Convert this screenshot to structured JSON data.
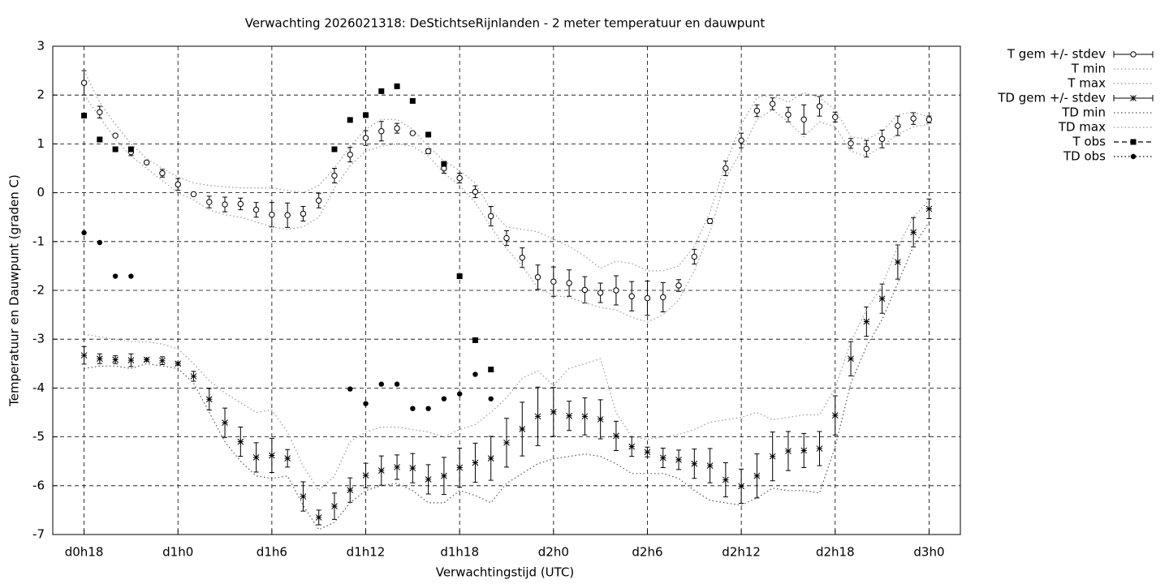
{
  "chart_data": {
    "type": "errorbar",
    "title": "Verwachting 2026021318: DeStichtseRijnlanden - 2 meter temperatuur en dauwpunt",
    "xlabel": "Verwachtingstijd (UTC)",
    "ylabel": "Temperatuur en Dauwpunt (graden C)",
    "xlim": [
      16,
      74
    ],
    "ylim": [
      -7,
      3
    ],
    "xticks": [
      {
        "value": 18,
        "label": "d0h18"
      },
      {
        "value": 24,
        "label": "d1h0"
      },
      {
        "value": 30,
        "label": "d1h6"
      },
      {
        "value": 36,
        "label": "d1h12"
      },
      {
        "value": 42,
        "label": "d1h18"
      },
      {
        "value": 48,
        "label": "d2h0"
      },
      {
        "value": 54,
        "label": "d2h6"
      },
      {
        "value": 60,
        "label": "d2h12"
      },
      {
        "value": 66,
        "label": "d2h18"
      },
      {
        "value": 72,
        "label": "d3h0"
      }
    ],
    "yticks": [
      -7,
      -6,
      -5,
      -4,
      -3,
      -2,
      -1,
      0,
      1,
      2,
      3
    ],
    "grid": true,
    "legend": "outside-right",
    "x": [
      18,
      19,
      20,
      21,
      22,
      23,
      24,
      25,
      26,
      27,
      28,
      29,
      30,
      31,
      32,
      33,
      34,
      35,
      36,
      37,
      38,
      39,
      40,
      41,
      42,
      43,
      44,
      45,
      46,
      47,
      48,
      49,
      50,
      51,
      52,
      53,
      54,
      55,
      56,
      57,
      58,
      59,
      60,
      61,
      62,
      63,
      64,
      65,
      66,
      67,
      68,
      69,
      70,
      71,
      72
    ],
    "series": [
      {
        "name": "T gem +/- stdev",
        "color": "#000000",
        "marker": "circle",
        "line": "errorbar",
        "values": [
          2.25,
          1.65,
          1.17,
          0.83,
          0.62,
          0.4,
          0.17,
          -0.03,
          -0.19,
          -0.24,
          -0.23,
          -0.35,
          -0.45,
          -0.46,
          -0.43,
          -0.16,
          0.35,
          0.78,
          1.12,
          1.26,
          1.32,
          1.22,
          0.85,
          0.5,
          0.3,
          0.02,
          -0.48,
          -0.93,
          -1.33,
          -1.73,
          -1.82,
          -1.85,
          -1.99,
          -2.05,
          -2.0,
          -2.12,
          -2.16,
          -2.14,
          -1.9,
          -1.31,
          -0.58,
          0.5,
          1.07,
          1.68,
          1.82,
          1.6,
          1.5,
          1.77,
          1.55,
          1.01,
          0.9,
          1.1,
          1.37,
          1.52,
          1.5
        ],
        "errors": [
          0.25,
          0.12,
          0.02,
          0.07,
          0.03,
          0.08,
          0.12,
          0.02,
          0.12,
          0.15,
          0.12,
          0.15,
          0.25,
          0.25,
          0.15,
          0.15,
          0.15,
          0.15,
          0.15,
          0.2,
          0.1,
          0.03,
          0.05,
          0.1,
          0.1,
          0.12,
          0.2,
          0.15,
          0.2,
          0.25,
          0.3,
          0.27,
          0.27,
          0.2,
          0.3,
          0.3,
          0.35,
          0.3,
          0.12,
          0.15,
          0.05,
          0.15,
          0.15,
          0.12,
          0.12,
          0.15,
          0.3,
          0.2,
          0.1,
          0.1,
          0.17,
          0.18,
          0.2,
          0.12,
          0.07
        ]
      },
      {
        "name": "T min",
        "color": "#999999",
        "line": "dotted",
        "values": [
          2.0,
          1.55,
          1.1,
          0.75,
          0.5,
          0.25,
          0.0,
          -0.15,
          -0.35,
          -0.45,
          -0.5,
          -0.6,
          -0.7,
          -0.75,
          -0.7,
          -0.5,
          0.1,
          0.55,
          0.85,
          0.95,
          1.0,
          0.95,
          0.75,
          0.4,
          0.15,
          -0.2,
          -0.7,
          -1.15,
          -1.5,
          -1.95,
          -2.1,
          -2.15,
          -2.25,
          -2.35,
          -2.4,
          -2.55,
          -2.65,
          -2.5,
          -2.2,
          -1.6,
          -0.8,
          0.3,
          0.85,
          1.5,
          1.7,
          1.45,
          1.15,
          1.45,
          1.35,
          0.85,
          0.75,
          0.95,
          1.2,
          1.35,
          1.4
        ]
      },
      {
        "name": "T max",
        "color": "#999999",
        "line": "dotted",
        "values": [
          2.5,
          1.85,
          1.4,
          1.0,
          0.7,
          0.5,
          0.32,
          0.2,
          0.15,
          0.12,
          0.1,
          0.1,
          0.1,
          0.05,
          0.0,
          0.15,
          0.5,
          0.95,
          1.3,
          1.5,
          1.5,
          1.3,
          0.95,
          0.65,
          0.45,
          0.2,
          -0.35,
          -0.7,
          -0.75,
          -0.8,
          -0.95,
          -1.1,
          -1.3,
          -1.55,
          -1.4,
          -1.45,
          -1.6,
          -1.6,
          -1.5,
          -1.1,
          -0.4,
          0.6,
          1.4,
          1.95,
          2.0,
          1.85,
          2.05,
          1.95,
          1.7,
          1.15,
          1.1,
          1.25,
          1.6,
          1.65,
          1.55
        ]
      },
      {
        "name": "TD gem +/- stdev",
        "color": "#000000",
        "marker": "star",
        "line": "errorbar",
        "values": [
          -3.33,
          -3.4,
          -3.42,
          -3.43,
          -3.42,
          -3.44,
          -3.5,
          -3.76,
          -4.23,
          -4.71,
          -5.1,
          -5.42,
          -5.38,
          -5.44,
          -6.22,
          -6.65,
          -6.42,
          -6.09,
          -5.79,
          -5.69,
          -5.62,
          -5.64,
          -5.87,
          -5.8,
          -5.63,
          -5.53,
          -5.44,
          -5.12,
          -4.84,
          -4.58,
          -4.49,
          -4.57,
          -4.58,
          -4.64,
          -4.98,
          -5.2,
          -5.31,
          -5.43,
          -5.47,
          -5.55,
          -5.59,
          -5.88,
          -6.01,
          -5.8,
          -5.4,
          -5.29,
          -5.28,
          -5.24,
          -4.56,
          -3.4,
          -2.64,
          -2.17,
          -1.42,
          -0.81,
          -0.33
        ],
        "errors": [
          0.18,
          0.1,
          0.08,
          0.13,
          0.03,
          0.08,
          0.03,
          0.1,
          0.22,
          0.3,
          0.3,
          0.3,
          0.35,
          0.18,
          0.3,
          0.15,
          0.27,
          0.25,
          0.25,
          0.3,
          0.25,
          0.3,
          0.3,
          0.38,
          0.4,
          0.4,
          0.45,
          0.5,
          0.55,
          0.6,
          0.5,
          0.3,
          0.38,
          0.4,
          0.3,
          0.2,
          0.1,
          0.2,
          0.2,
          0.3,
          0.35,
          0.35,
          0.35,
          0.45,
          0.5,
          0.4,
          0.35,
          0.35,
          0.4,
          0.35,
          0.3,
          0.3,
          0.35,
          0.3,
          0.2
        ]
      },
      {
        "name": "TD min",
        "color": "#555555",
        "line": "dotted",
        "values": [
          -3.6,
          -3.55,
          -3.55,
          -3.6,
          -3.5,
          -3.55,
          -3.6,
          -3.9,
          -4.5,
          -5.1,
          -5.5,
          -5.8,
          -5.85,
          -5.8,
          -6.4,
          -6.9,
          -6.75,
          -6.35,
          -6.1,
          -6.0,
          -5.95,
          -6.1,
          -6.35,
          -6.35,
          -6.1,
          -6.2,
          -6.35,
          -5.95,
          -5.75,
          -5.55,
          -5.45,
          -5.4,
          -5.35,
          -5.4,
          -5.55,
          -5.75,
          -5.75,
          -5.75,
          -5.85,
          -6.1,
          -6.3,
          -6.35,
          -6.4,
          -6.25,
          -6.05,
          -6.1,
          -6.1,
          -6.15,
          -5.2,
          -3.9,
          -3.15,
          -2.6,
          -1.85,
          -1.1,
          -0.6
        ]
      },
      {
        "name": "TD max",
        "color": "#999999",
        "line": "dotted",
        "values": [
          -2.9,
          -2.95,
          -3.0,
          -3.05,
          -3.05,
          -3.1,
          -3.2,
          -3.5,
          -3.85,
          -4.1,
          -4.3,
          -4.5,
          -4.45,
          -4.9,
          -5.6,
          -6.1,
          -5.8,
          -5.1,
          -4.9,
          -4.8,
          -4.8,
          -4.85,
          -4.9,
          -5.0,
          -4.85,
          -4.75,
          -4.5,
          -4.2,
          -3.8,
          -3.65,
          -3.95,
          -3.6,
          -3.5,
          -3.4,
          -4.5,
          -5.0,
          -5.05,
          -5.0,
          -4.95,
          -4.85,
          -4.7,
          -4.65,
          -4.6,
          -4.5,
          -4.65,
          -4.6,
          -4.55,
          -4.55,
          -4.0,
          -3.05,
          -2.4,
          -1.9,
          -1.1,
          -0.5,
          -0.15
        ]
      },
      {
        "name": "T obs",
        "color": "#000000",
        "marker": "square",
        "line": "dashed",
        "x": [
          18,
          19,
          20,
          21,
          34,
          35,
          36,
          37,
          38,
          39,
          40,
          41,
          42,
          43,
          44
        ],
        "values": [
          1.58,
          1.09,
          0.89,
          0.89,
          0.89,
          1.49,
          1.59,
          2.08,
          2.18,
          1.88,
          1.19,
          0.59,
          -1.71,
          -3.02,
          -3.62
        ]
      },
      {
        "name": "TD obs",
        "color": "#000000",
        "marker": "dot",
        "line": "dotted",
        "x": [
          18,
          19,
          20,
          21,
          35,
          36,
          37,
          38,
          39,
          40,
          41,
          42,
          43,
          44
        ],
        "values": [
          -0.82,
          -1.02,
          -1.71,
          -1.71,
          -4.02,
          -4.32,
          -3.92,
          -3.92,
          -4.42,
          -4.42,
          -4.22,
          -4.12,
          -3.72,
          -4.22
        ]
      }
    ]
  }
}
